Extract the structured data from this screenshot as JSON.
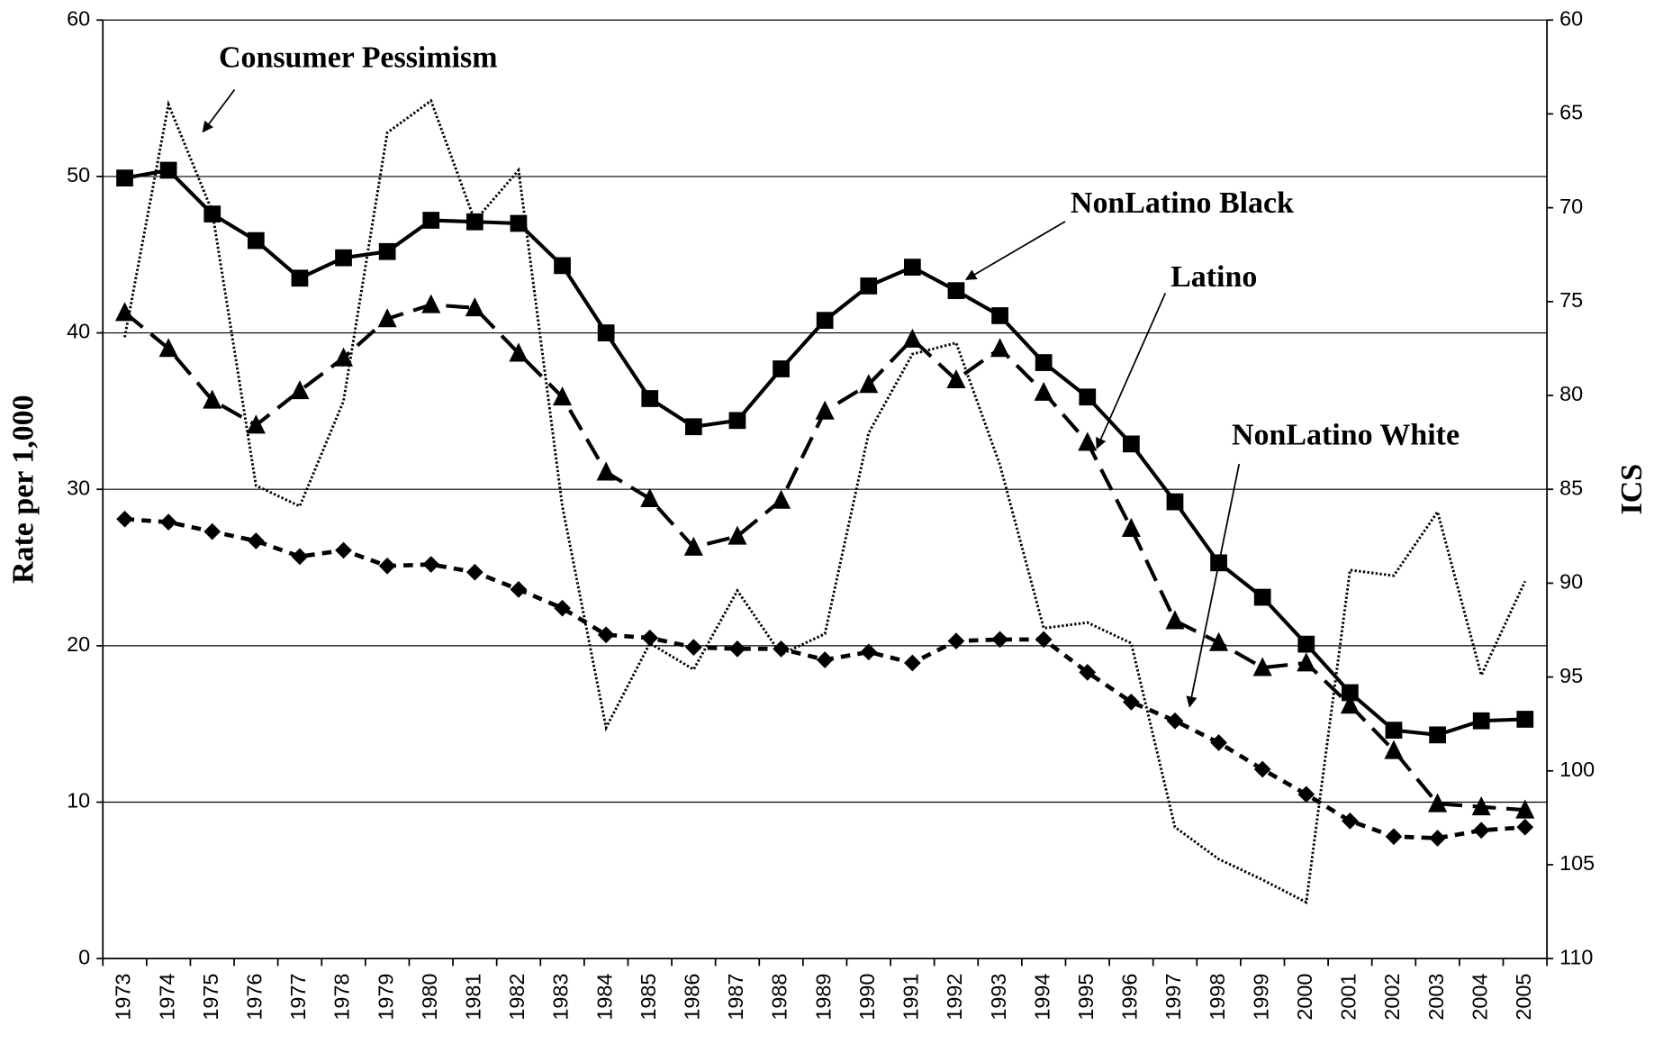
{
  "chart_data": {
    "type": "line",
    "categories": [
      "1973",
      "1974",
      "1975",
      "1976",
      "1977",
      "1978",
      "1979",
      "1980",
      "1981",
      "1982",
      "1983",
      "1984",
      "1985",
      "1986",
      "1987",
      "1988",
      "1989",
      "1990",
      "1991",
      "1992",
      "1993",
      "1994",
      "1995",
      "1996",
      "1997",
      "1998",
      "1999",
      "2000",
      "2001",
      "2002",
      "2003",
      "2004",
      "2005"
    ],
    "y_label": "Rate per 1,000",
    "y2_label": "ICS",
    "ylim": [
      0,
      60
    ],
    "yticks": [
      0,
      10,
      20,
      30,
      40,
      50,
      60
    ],
    "y2lim": [
      110,
      60
    ],
    "y2ticks": [
      60,
      65,
      70,
      75,
      80,
      85,
      90,
      95,
      100,
      105,
      110
    ],
    "grid": true,
    "series": [
      {
        "name": "Consumer Pessimism",
        "color": "#000000",
        "axis": "y2",
        "marker": "none",
        "dash": "dot",
        "values": [
          76.9,
          64.5,
          70.2,
          84.8,
          85.9,
          80.3,
          66,
          64.3,
          70.7,
          68,
          85.9,
          97.7,
          93.2,
          94.6,
          90.4,
          93.8,
          92.7,
          82,
          77.8,
          77.2,
          83.7,
          92.4,
          92.1,
          93.2,
          103,
          104.7,
          105.8,
          107,
          89.3,
          89.6,
          86.2,
          94.9,
          89.9
        ]
      },
      {
        "name": "NonLatino Black",
        "color": "#000000",
        "marker": "square",
        "dash": "solid",
        "values": [
          49.9,
          50.4,
          47.6,
          45.9,
          43.5,
          44.8,
          45.2,
          47.2,
          47.1,
          47.0,
          44.3,
          40.0,
          35.8,
          34.0,
          34.4,
          37.7,
          40.8,
          43.0,
          44.2,
          42.7,
          41.1,
          38.1,
          35.9,
          32.9,
          29.2,
          25.3,
          23.1,
          20.1,
          17.0,
          14.6,
          14.3,
          15.2,
          15.3
        ]
      },
      {
        "name": "Latino",
        "color": "#000000",
        "marker": "triangle",
        "dash": "long-dash",
        "values": [
          41.3,
          39.0,
          35.7,
          34.1,
          36.3,
          38.4,
          40.9,
          41.8,
          41.6,
          38.7,
          35.9,
          31.1,
          29.4,
          26.3,
          27.0,
          29.3,
          35.0,
          36.7,
          39.6,
          37.0,
          39.0,
          36.2,
          33.0,
          27.5,
          21.6,
          20.2,
          18.6,
          18.9,
          16.2,
          13.3,
          9.9,
          9.7,
          9.5
        ]
      },
      {
        "name": "NonLatino White",
        "color": "#000000",
        "marker": "diamond",
        "dash": "dash",
        "values": [
          28.1,
          27.9,
          27.3,
          26.7,
          25.7,
          26.1,
          25.1,
          25.2,
          24.7,
          23.6,
          22.4,
          20.7,
          20.5,
          19.9,
          19.8,
          19.8,
          19.1,
          19.6,
          18.9,
          20.3,
          20.4,
          20.4,
          18.3,
          16.4,
          15.2,
          13.8,
          12.1,
          10.5,
          8.8,
          7.8,
          7.7,
          8.2,
          8.4
        ]
      }
    ]
  }
}
